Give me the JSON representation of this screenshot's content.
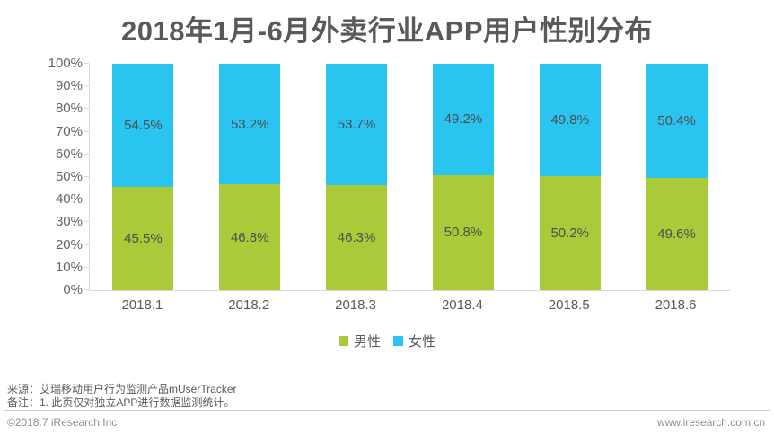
{
  "chart_data": {
    "type": "bar",
    "stacked": true,
    "title": "2018年1月-6月外卖行业APP用户性别分布",
    "categories": [
      "2018.1",
      "2018.2",
      "2018.3",
      "2018.4",
      "2018.5",
      "2018.6"
    ],
    "series": [
      {
        "name": "男性",
        "color": "#a9cb3a",
        "values": [
          45.5,
          46.8,
          46.3,
          50.8,
          50.2,
          49.6
        ]
      },
      {
        "name": "女性",
        "color": "#2ac4f0",
        "values": [
          54.5,
          53.2,
          53.7,
          49.2,
          49.8,
          50.4
        ]
      }
    ],
    "value_suffix": "%",
    "y_ticks": [
      "0%",
      "10%",
      "20%",
      "30%",
      "40%",
      "50%",
      "60%",
      "70%",
      "80%",
      "90%",
      "100%"
    ],
    "ylim": [
      0,
      100
    ],
    "grid": false,
    "legend_position": "bottom",
    "xlabel": "",
    "ylabel": ""
  },
  "colors": {
    "male": "#a9cb3a",
    "female": "#2ac4f0",
    "axis": "#d9d9d9",
    "title_text": "#595959"
  },
  "notes": {
    "source": "来源：艾瑞移动用户行为监测产品mUserTracker",
    "remark": "备注：1. 此页仅对独立APP进行数据监测统计。"
  },
  "footer": {
    "copyright": "©2018.7 iResearch Inc",
    "website": "www.iresearch.com.cn"
  }
}
